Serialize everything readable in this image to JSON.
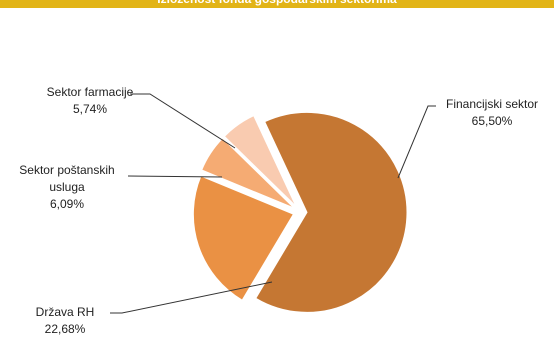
{
  "chart_data": {
    "type": "pie",
    "title": "Izloženost fonda gospodarskim sektorima",
    "categories": [
      "Financijski sektor",
      "Država RH",
      "Sektor poštanskih usluga",
      "Sektor farmacije"
    ],
    "values": [
      65.5,
      22.68,
      6.09,
      5.74
    ],
    "value_labels": [
      "65,50%",
      "22,68%",
      "6,09%",
      "5,74%"
    ],
    "colors": [
      "#c57733",
      "#ea9144",
      "#f5ab73",
      "#f9cbb0"
    ]
  }
}
